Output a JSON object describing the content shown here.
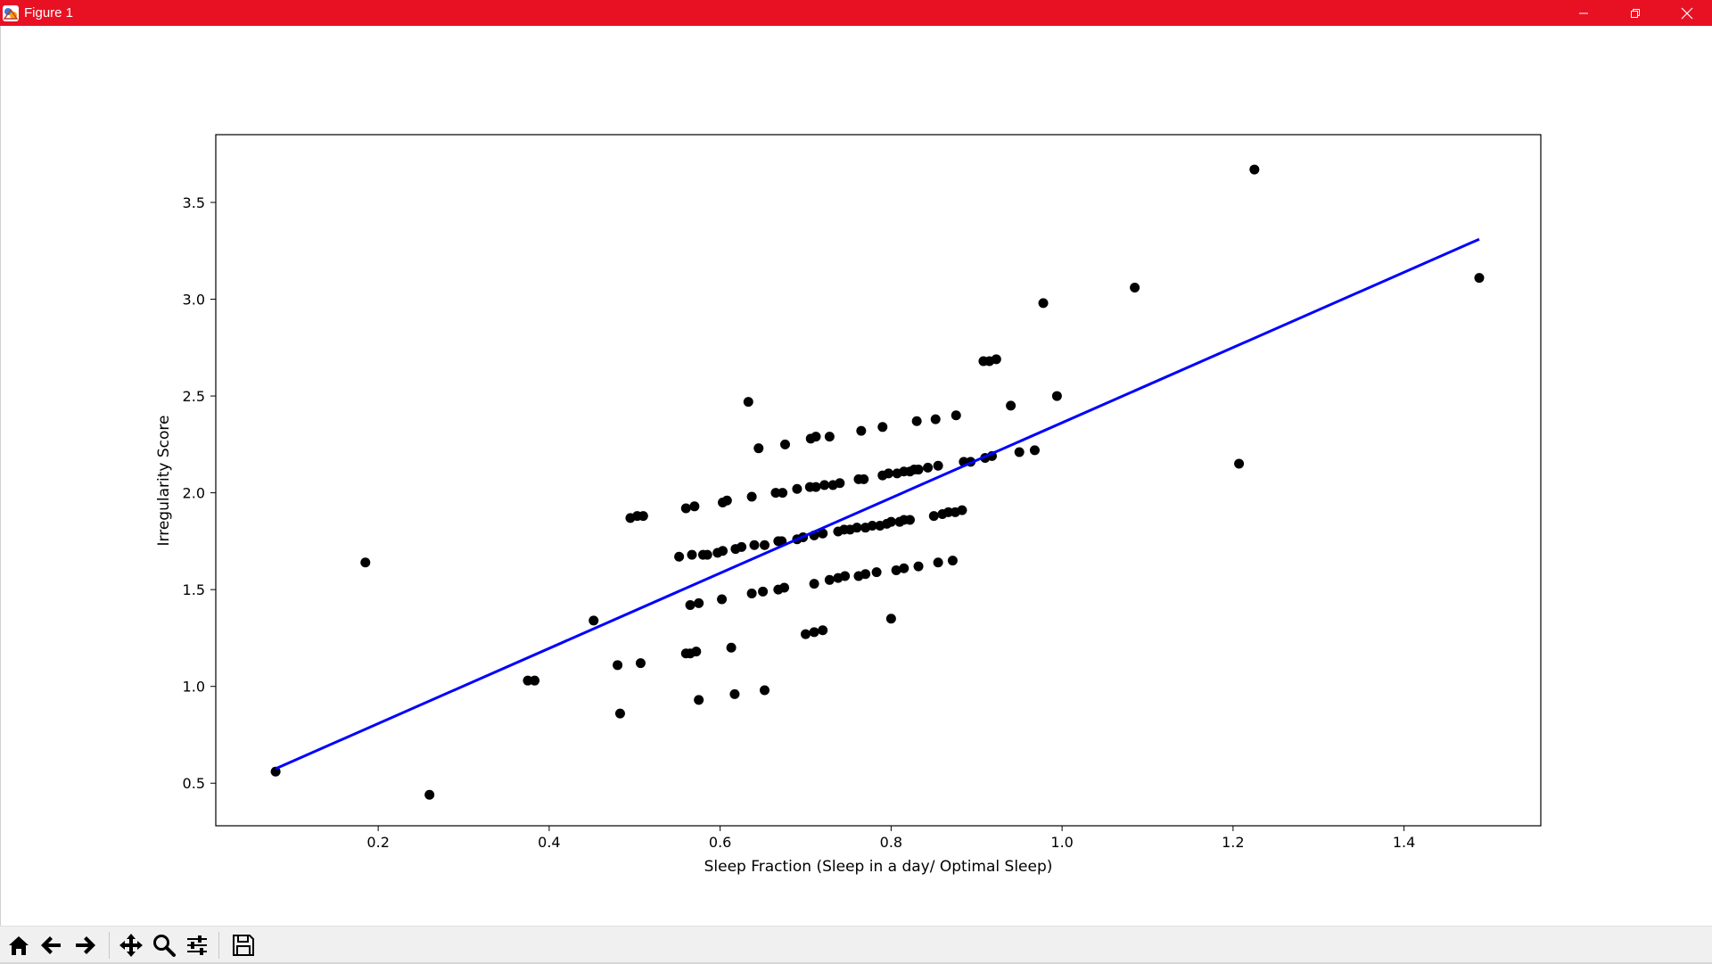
{
  "window": {
    "title": "Figure 1",
    "titlebar_color": "#e81123"
  },
  "toolbar": {
    "buttons": [
      {
        "name": "home",
        "icon": "home-icon"
      },
      {
        "name": "back",
        "icon": "arrow-left-icon"
      },
      {
        "name": "forward",
        "icon": "arrow-right-icon"
      },
      {
        "name": "pan",
        "icon": "move-icon"
      },
      {
        "name": "zoom",
        "icon": "magnifier-icon"
      },
      {
        "name": "configure-subplots",
        "icon": "sliders-icon"
      },
      {
        "name": "save",
        "icon": "floppy-icon"
      }
    ]
  },
  "chart_data": {
    "type": "scatter",
    "title": "",
    "xlabel": "Sleep Fraction (Sleep in a day/ Optimal Sleep)",
    "ylabel": "Irregularity Score",
    "xlim": [
      0.01,
      1.56
    ],
    "ylim": [
      0.28,
      3.85
    ],
    "xticks": [
      0.2,
      0.4,
      0.6,
      0.8,
      1.0,
      1.2,
      1.4
    ],
    "xtick_labels": [
      "0.2",
      "0.4",
      "0.6",
      "0.8",
      "1.0",
      "1.2",
      "1.4"
    ],
    "yticks": [
      0.5,
      1.0,
      1.5,
      2.0,
      2.5,
      3.0,
      3.5
    ],
    "ytick_labels": [
      "0.5",
      "1.0",
      "1.5",
      "2.0",
      "2.5",
      "3.0",
      "3.5"
    ],
    "grid": false,
    "point_color": "#000000",
    "line_color": "#0000ff",
    "points": [
      [
        0.08,
        0.56
      ],
      [
        0.185,
        1.64
      ],
      [
        0.26,
        0.44
      ],
      [
        0.375,
        1.03
      ],
      [
        0.383,
        1.03
      ],
      [
        0.452,
        1.34
      ],
      [
        0.48,
        1.11
      ],
      [
        0.483,
        0.86
      ],
      [
        0.507,
        1.12
      ],
      [
        0.495,
        1.87
      ],
      [
        0.503,
        1.88
      ],
      [
        0.51,
        1.88
      ],
      [
        0.56,
        1.17
      ],
      [
        0.565,
        1.17
      ],
      [
        0.572,
        1.18
      ],
      [
        0.575,
        0.93
      ],
      [
        0.613,
        1.2
      ],
      [
        0.617,
        0.96
      ],
      [
        0.652,
        0.98
      ],
      [
        0.565,
        1.42
      ],
      [
        0.575,
        1.43
      ],
      [
        0.602,
        1.45
      ],
      [
        0.637,
        1.48
      ],
      [
        0.65,
        1.49
      ],
      [
        0.668,
        1.5
      ],
      [
        0.675,
        1.51
      ],
      [
        0.71,
        1.53
      ],
      [
        0.728,
        1.55
      ],
      [
        0.738,
        1.56
      ],
      [
        0.746,
        1.57
      ],
      [
        0.762,
        1.57
      ],
      [
        0.77,
        1.58
      ],
      [
        0.783,
        1.59
      ],
      [
        0.806,
        1.6
      ],
      [
        0.815,
        1.61
      ],
      [
        0.832,
        1.62
      ],
      [
        0.855,
        1.64
      ],
      [
        0.872,
        1.65
      ],
      [
        0.7,
        1.27
      ],
      [
        0.71,
        1.28
      ],
      [
        0.72,
        1.29
      ],
      [
        0.8,
        1.35
      ],
      [
        0.552,
        1.67
      ],
      [
        0.567,
        1.68
      ],
      [
        0.58,
        1.68
      ],
      [
        0.585,
        1.68
      ],
      [
        0.597,
        1.69
      ],
      [
        0.603,
        1.7
      ],
      [
        0.618,
        1.71
      ],
      [
        0.625,
        1.72
      ],
      [
        0.64,
        1.73
      ],
      [
        0.652,
        1.73
      ],
      [
        0.668,
        1.75
      ],
      [
        0.672,
        1.75
      ],
      [
        0.69,
        1.76
      ],
      [
        0.697,
        1.77
      ],
      [
        0.71,
        1.78
      ],
      [
        0.72,
        1.79
      ],
      [
        0.738,
        1.8
      ],
      [
        0.745,
        1.81
      ],
      [
        0.752,
        1.81
      ],
      [
        0.76,
        1.82
      ],
      [
        0.77,
        1.82
      ],
      [
        0.778,
        1.83
      ],
      [
        0.787,
        1.83
      ],
      [
        0.795,
        1.84
      ],
      [
        0.8,
        1.85
      ],
      [
        0.81,
        1.85
      ],
      [
        0.815,
        1.86
      ],
      [
        0.822,
        1.86
      ],
      [
        0.85,
        1.88
      ],
      [
        0.86,
        1.89
      ],
      [
        0.867,
        1.9
      ],
      [
        0.875,
        1.9
      ],
      [
        0.883,
        1.91
      ],
      [
        0.56,
        1.92
      ],
      [
        0.57,
        1.93
      ],
      [
        0.603,
        1.95
      ],
      [
        0.608,
        1.96
      ],
      [
        0.637,
        1.98
      ],
      [
        0.665,
        2.0
      ],
      [
        0.673,
        2.0
      ],
      [
        0.69,
        2.02
      ],
      [
        0.705,
        2.03
      ],
      [
        0.712,
        2.03
      ],
      [
        0.722,
        2.04
      ],
      [
        0.732,
        2.04
      ],
      [
        0.74,
        2.05
      ],
      [
        0.762,
        2.07
      ],
      [
        0.768,
        2.07
      ],
      [
        0.79,
        2.09
      ],
      [
        0.797,
        2.1
      ],
      [
        0.807,
        2.1
      ],
      [
        0.815,
        2.11
      ],
      [
        0.822,
        2.11
      ],
      [
        0.827,
        2.12
      ],
      [
        0.832,
        2.12
      ],
      [
        0.843,
        2.13
      ],
      [
        0.855,
        2.14
      ],
      [
        0.885,
        2.16
      ],
      [
        0.893,
        2.16
      ],
      [
        0.91,
        2.18
      ],
      [
        0.918,
        2.19
      ],
      [
        0.95,
        2.21
      ],
      [
        0.968,
        2.22
      ],
      [
        0.645,
        2.23
      ],
      [
        0.676,
        2.25
      ],
      [
        0.706,
        2.28
      ],
      [
        0.712,
        2.29
      ],
      [
        0.728,
        2.29
      ],
      [
        0.765,
        2.32
      ],
      [
        0.79,
        2.34
      ],
      [
        0.83,
        2.37
      ],
      [
        0.852,
        2.38
      ],
      [
        0.876,
        2.4
      ],
      [
        0.633,
        2.47
      ],
      [
        0.94,
        2.45
      ],
      [
        0.994,
        2.5
      ],
      [
        0.908,
        2.68
      ],
      [
        0.915,
        2.68
      ],
      [
        0.923,
        2.69
      ],
      [
        0.978,
        2.98
      ],
      [
        1.085,
        3.06
      ],
      [
        1.207,
        2.15
      ],
      [
        1.225,
        3.67
      ],
      [
        1.488,
        3.11
      ]
    ],
    "regression_line": {
      "x": [
        0.08,
        1.488
      ],
      "y": [
        0.575,
        3.31
      ]
    }
  }
}
